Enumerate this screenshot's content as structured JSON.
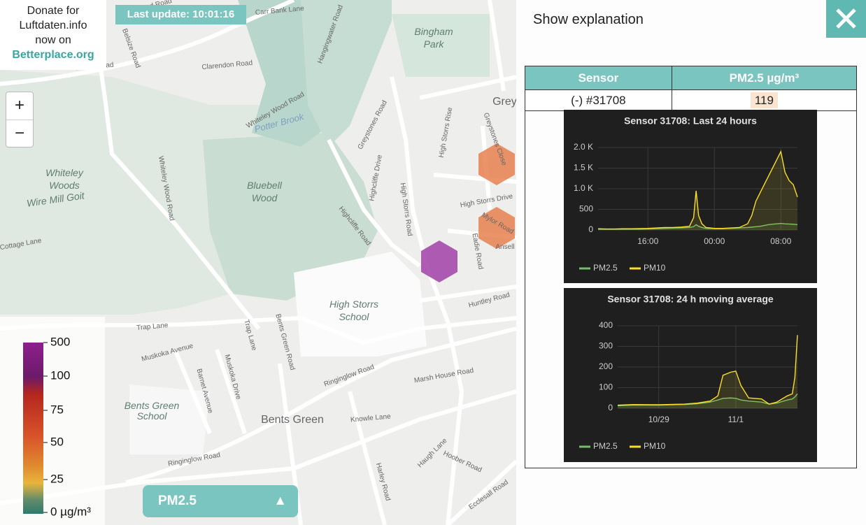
{
  "donate": {
    "lines": [
      "Donate for",
      "Luftdaten.info",
      "now on"
    ],
    "link": "Betterplace.org"
  },
  "last_update": "Last update: 10:01:16",
  "zoom": {
    "in": "+",
    "out": "−"
  },
  "legend": {
    "ticks": [
      500,
      100,
      75,
      50,
      25,
      {
        "value": 0,
        "label": "0 µg/m³"
      }
    ]
  },
  "selector": {
    "label": "PM2.5",
    "icon": "▲"
  },
  "panel": {
    "toggle": "Show explanation"
  },
  "table": {
    "header": [
      "Sensor",
      "PM2.5 µg/m³"
    ],
    "rows": [
      [
        "(-) #31708",
        119
      ]
    ]
  },
  "charts": [
    {
      "type": "line",
      "title": "Sensor 31708: Last 24 hours",
      "x": [
        0,
        1,
        2,
        3,
        4,
        5,
        6,
        7,
        8,
        9,
        10,
        11,
        11.5,
        11.8,
        12.1,
        12.5,
        13,
        14,
        15,
        16,
        17,
        18,
        18.5,
        19,
        19.5,
        20,
        20.5,
        21,
        21.5,
        22,
        22.5,
        23,
        23.5,
        24
      ],
      "series": [
        {
          "name": "PM2.5",
          "color": "#73bf69",
          "values": [
            20,
            20,
            20,
            20,
            20,
            20,
            25,
            30,
            40,
            45,
            50,
            60,
            80,
            130,
            90,
            60,
            40,
            30,
            30,
            40,
            50,
            60,
            70,
            80,
            90,
            110,
            130,
            140,
            150,
            160,
            150,
            145,
            140,
            130
          ]
        },
        {
          "name": "PM10",
          "color": "#fade2a",
          "values": [
            30,
            25,
            25,
            30,
            30,
            35,
            40,
            50,
            60,
            60,
            70,
            90,
            300,
            950,
            350,
            150,
            60,
            40,
            40,
            50,
            60,
            150,
            350,
            700,
            900,
            1100,
            1300,
            1500,
            1700,
            1900,
            1400,
            1200,
            1100,
            800
          ]
        }
      ],
      "xlim": [
        0,
        24
      ],
      "xticks": [
        {
          "value": 6,
          "label": "16:00"
        },
        {
          "value": 14,
          "label": "00:00"
        },
        {
          "value": 22,
          "label": "08:00"
        }
      ],
      "ylim": [
        0,
        2000
      ],
      "yticks": [
        0,
        500,
        {
          "value": 1000,
          "label": "1.0 K"
        },
        {
          "value": 1500,
          "label": "1.5 K"
        },
        {
          "value": 2000,
          "label": "2.0 K"
        }
      ],
      "grid": true
    },
    {
      "type": "line",
      "title": "Sensor 31708: 24 h moving average",
      "x": [
        0.4,
        1,
        2,
        3,
        3.5,
        4,
        4.3,
        4.5,
        4.8,
        5.0,
        5.2,
        5.5,
        6,
        6.3,
        6.6,
        7,
        7.2,
        7.3,
        7.4
      ],
      "series": [
        {
          "name": "PM2.5",
          "color": "#73bf69",
          "values": [
            12,
            15,
            15,
            18,
            22,
            30,
            40,
            48,
            50,
            48,
            40,
            35,
            30,
            20,
            25,
            40,
            45,
            55,
            70
          ]
        },
        {
          "name": "PM10",
          "color": "#fade2a",
          "values": [
            15,
            18,
            17,
            20,
            25,
            35,
            60,
            160,
            175,
            180,
            110,
            50,
            45,
            20,
            30,
            60,
            70,
            150,
            355
          ]
        }
      ],
      "xlim": [
        0.4,
        7.4
      ],
      "xticks": [
        {
          "value": 2,
          "label": "10/29"
        },
        {
          "value": 5,
          "label": "11/1"
        }
      ],
      "ylim": [
        0,
        400
      ],
      "yticks": [
        0,
        100,
        200,
        300,
        400
      ],
      "grid": true
    }
  ],
  "map": {
    "labels": [
      "Bingham",
      "Park",
      "Potter Brook",
      "Whiteley",
      "Woods",
      "Wire Mill Goit",
      "Bluebell",
      "Wood",
      "High Storrs",
      "School",
      "Bents Green",
      "School",
      "Bents Green",
      "Greystones",
      "Whiteley Wood Road",
      "Greystones Road",
      "Highcliffe Drive",
      "High Storrs Road",
      "Highcliffe Road",
      "High Storrs Rise",
      "High Storrs Drive",
      "Ecclesall Road",
      "Ringinglow Road",
      "Ringinglow Road",
      "Marsh House Road",
      "Huntley Road",
      "Knowle Lane",
      "Hoober Road",
      "Haugh Lane",
      "Trap Lane",
      "Muskoka Avenue",
      "Barnet Avenue",
      "Muskoka Drive",
      "Bents Green Road",
      "Trap Lane",
      "Fulwood Road",
      "Clarendon Road",
      "Sefton Road",
      "Belsize Road",
      "Carr Bank Lane",
      "Hangingwater Road",
      "Whiteley Wood Road",
      "Cottage Lane",
      "Mylor Road",
      "Greystones Close",
      "Eadie Road",
      "Harley Road",
      "Ansell"
    ]
  }
}
